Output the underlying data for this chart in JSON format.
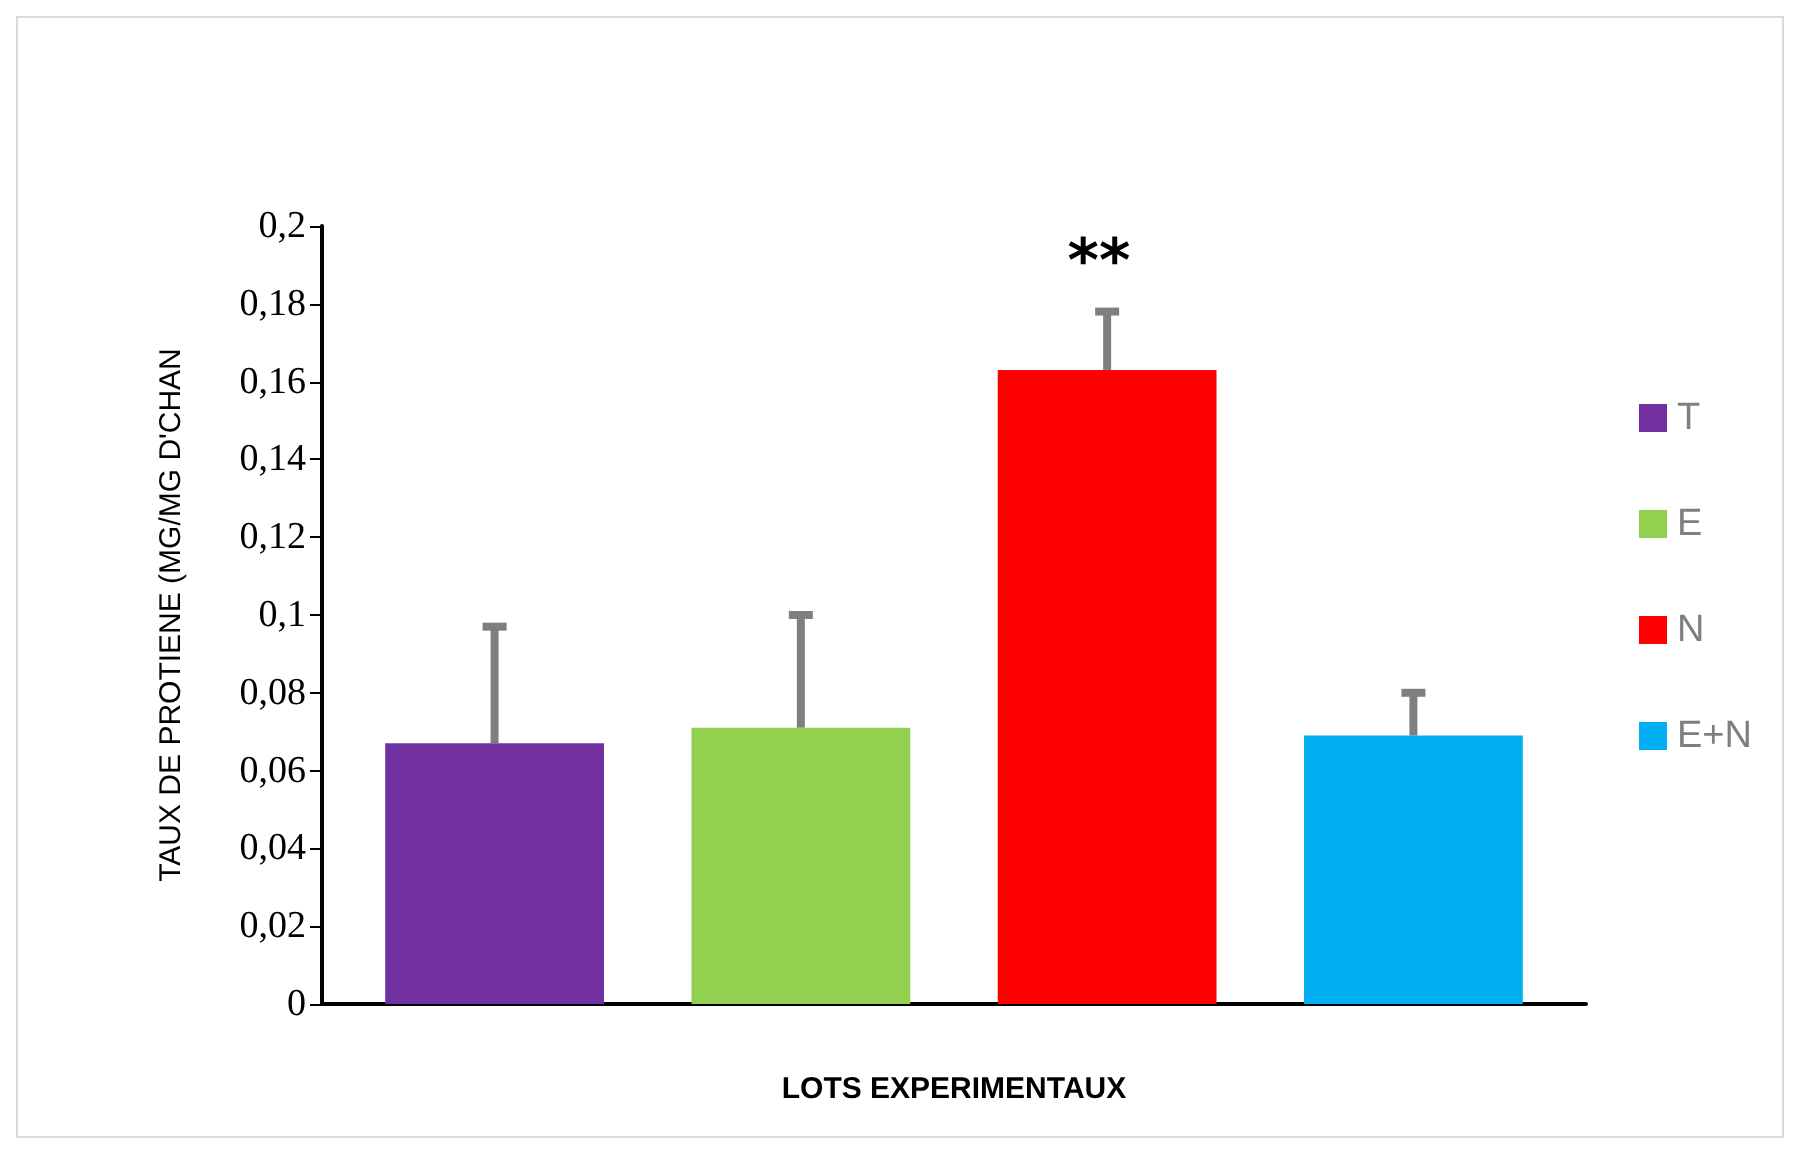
{
  "chart_data": {
    "type": "bar",
    "xlabel": "LOTS EXPERIMENTAUX",
    "ylabel": "TAUX DE PROTIENE (MG/MG D'CHAN",
    "categories": [
      null
    ],
    "series": [
      {
        "name": "T",
        "color": "#7030a0",
        "values": [
          0.067
        ],
        "errors": [
          [
            0.067,
            0.097
          ]
        ]
      },
      {
        "name": "E",
        "color": "#92d050",
        "values": [
          0.071
        ],
        "errors": [
          [
            0.071,
            0.1
          ]
        ]
      },
      {
        "name": "N",
        "color": "#ff0000",
        "values": [
          0.163
        ],
        "errors": [
          [
            0.163,
            0.178
          ]
        ]
      },
      {
        "name": "E+N",
        "color": "#00b0f0",
        "values": [
          0.069
        ],
        "errors": [
          [
            0.069,
            0.08
          ]
        ]
      }
    ],
    "ylim": [
      0,
      0.2
    ],
    "yticks": [
      0,
      {
        "value": 0.02,
        "label": "0,02"
      },
      {
        "value": 0.04,
        "label": "0,04"
      },
      {
        "value": 0.06,
        "label": "0,06"
      },
      {
        "value": 0.08,
        "label": "0,08"
      },
      {
        "value": 0.1,
        "label": "0,1"
      },
      {
        "value": 0.12,
        "label": "0,12"
      },
      {
        "value": 0.14,
        "label": "0,14"
      },
      {
        "value": 0.16,
        "label": "0,16"
      },
      {
        "value": 0.18,
        "label": "0,18"
      },
      {
        "value": 0.2,
        "label": "0,2"
      }
    ],
    "grid": false,
    "legend": "right",
    "annotations": [
      "**"
    ]
  }
}
